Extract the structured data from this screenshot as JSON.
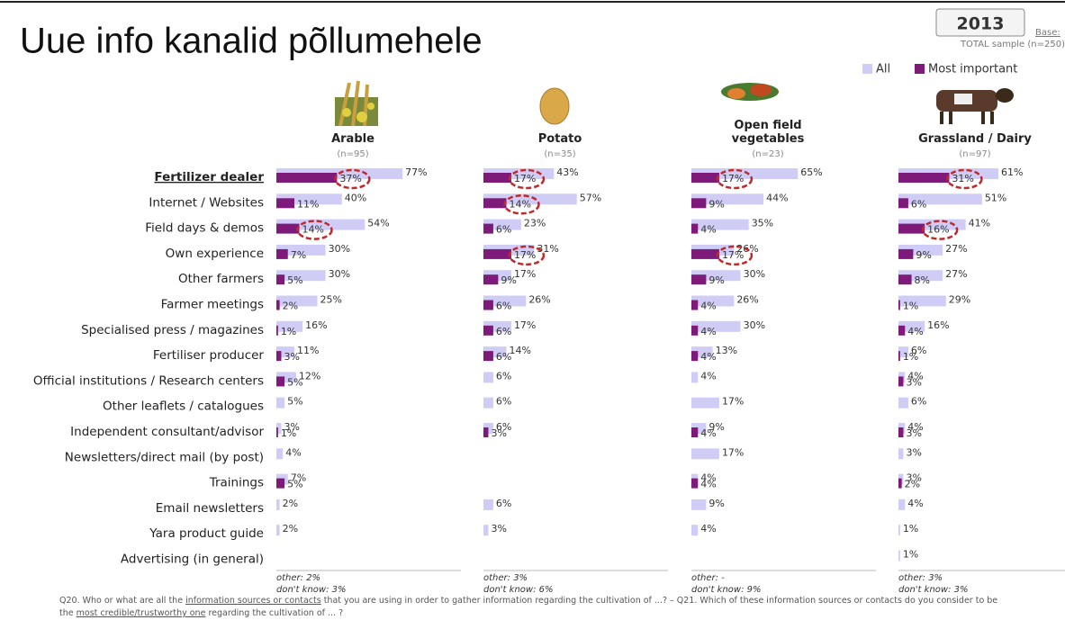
{
  "title": "Uue info kanalid põllumehele",
  "year": "2013",
  "base": "Base:",
  "sample": "TOTAL sample (n=250)",
  "categories": [
    "Fertilizer dealer",
    "Internet / Websites",
    "Field days & demos",
    "Own experience",
    "Other farmers",
    "Farmer meetings",
    "Specialised press / magazines",
    "Fertiliser producer",
    "Official institutions / Research centers",
    "Other leaflets / catalogues",
    "Independent consultant/advisor",
    "Newsletters/direct mail (by post)",
    "Trainings",
    "Email newsletters",
    "Yara product guide",
    "Advertising (in general)"
  ],
  "emphasized_category": 0,
  "footnote": [
    {
      "text": "Q20. Who or what are all the ",
      "underline": false
    },
    {
      "text": "information sources or contacts",
      "underline": true
    },
    {
      "text": " that you are using in order to gather information regarding the cultivation of ...? – Q21. Which of these information sources or contacts do you consider to be the ",
      "underline": false
    },
    {
      "text": "most credible/trustworthy one",
      "underline": true
    },
    {
      "text": " regarding the cultivation of ... ?",
      "underline": false
    }
  ],
  "chart_data": [
    {
      "type": "bar",
      "title": "Arable",
      "subtitle": "(n=95)",
      "other": "other: 2%",
      "dont_know": "don't know: 3%",
      "circled": [
        0,
        2
      ],
      "series": [
        {
          "name": "All",
          "color": "#cfcdf5",
          "values": [
            77,
            40,
            54,
            30,
            30,
            25,
            16,
            11,
            12,
            5,
            3,
            4,
            7,
            2,
            2,
            null
          ],
          "value_labels": [
            "77%",
            "40%",
            "54%",
            "30%",
            "30%",
            "25%",
            "16%",
            "11%",
            "12%",
            "5%",
            "3%",
            "4%",
            "7%",
            "2%",
            "2%",
            null
          ]
        },
        {
          "name": "Most important",
          "color": "#7d1a7a",
          "values": [
            37,
            11,
            14,
            7,
            5,
            2,
            1,
            3,
            5,
            null,
            1,
            null,
            5,
            null,
            null,
            null
          ],
          "value_labels": [
            "37%",
            "11%",
            "14%",
            "7%",
            "5%",
            "2%",
            "1%",
            "3%",
            "5%",
            null,
            "1%",
            null,
            "5%",
            null,
            null,
            null
          ]
        }
      ]
    },
    {
      "type": "bar",
      "title": "Potato",
      "subtitle": "(n=35)",
      "other": "other: 3%",
      "dont_know": "don't know: 6%",
      "circled": [
        0,
        1,
        3
      ],
      "series": [
        {
          "name": "All",
          "color": "#cfcdf5",
          "values": [
            43,
            57,
            23,
            31,
            17,
            26,
            17,
            14,
            6,
            6,
            6,
            null,
            null,
            6,
            3,
            null
          ],
          "value_labels": [
            "43%",
            "57%",
            "23%",
            "31%",
            "17%",
            "26%",
            "17%",
            "14%",
            "6%",
            "6%",
            "6%",
            null,
            null,
            "6%",
            "3%",
            null
          ]
        },
        {
          "name": "Most important",
          "color": "#7d1a7a",
          "values": [
            17,
            14,
            6,
            17,
            9,
            6,
            6,
            6,
            null,
            null,
            3,
            null,
            null,
            null,
            null,
            null
          ],
          "value_labels": [
            "17%",
            "14%",
            "6%",
            "17%",
            "9%",
            "6%",
            "6%",
            "6%",
            null,
            null,
            "3%",
            null,
            null,
            null,
            null,
            null
          ]
        }
      ]
    },
    {
      "type": "bar",
      "title": "Open field vegetables",
      "subtitle": "(n=23)",
      "other": "other: -",
      "dont_know": "don't know: 9%",
      "circled": [
        0,
        3
      ],
      "series": [
        {
          "name": "All",
          "color": "#cfcdf5",
          "values": [
            65,
            44,
            35,
            26,
            30,
            26,
            30,
            13,
            4,
            17,
            9,
            17,
            4,
            9,
            4,
            null
          ],
          "value_labels": [
            "65%",
            "44%",
            "35%",
            "26%",
            "30%",
            "26%",
            "30%",
            "13%",
            "4%",
            "17%",
            "9%",
            "17%",
            "4%",
            "9%",
            "4%",
            null
          ]
        },
        {
          "name": "Most important",
          "color": "#7d1a7a",
          "values": [
            17,
            9,
            4,
            17,
            9,
            4,
            4,
            4,
            null,
            null,
            4,
            null,
            4,
            null,
            null,
            null
          ],
          "value_labels": [
            "17%",
            "9%",
            "4%",
            "17%",
            "9%",
            "4%",
            "4%",
            "4%",
            null,
            null,
            "4%",
            null,
            "4%",
            null,
            null,
            null
          ]
        }
      ]
    },
    {
      "type": "bar",
      "title": "Grassland / Dairy",
      "subtitle": "(n=97)",
      "other": "other: 3%",
      "dont_know": "don't know: 3%",
      "circled": [
        0,
        2
      ],
      "series": [
        {
          "name": "All",
          "color": "#cfcdf5",
          "values": [
            61,
            51,
            41,
            27,
            27,
            29,
            16,
            6,
            4,
            6,
            4,
            3,
            3,
            4,
            1,
            1
          ],
          "value_labels": [
            "61%",
            "51%",
            "41%",
            "27%",
            "27%",
            "29%",
            "16%",
            "6%",
            "4%",
            "6%",
            "4%",
            "3%",
            "3%",
            "4%",
            "1%",
            "1%"
          ]
        },
        {
          "name": "Most important",
          "color": "#7d1a7a",
          "values": [
            31,
            6,
            16,
            9,
            8,
            1,
            4,
            1,
            3,
            null,
            3,
            null,
            2,
            null,
            null,
            null
          ],
          "value_labels": [
            "31%",
            "6%",
            "16%",
            "9%",
            "8%",
            "1%",
            "4%",
            "1%",
            "3%",
            null,
            "3%",
            null,
            "2%",
            null,
            null,
            null
          ]
        }
      ]
    }
  ]
}
